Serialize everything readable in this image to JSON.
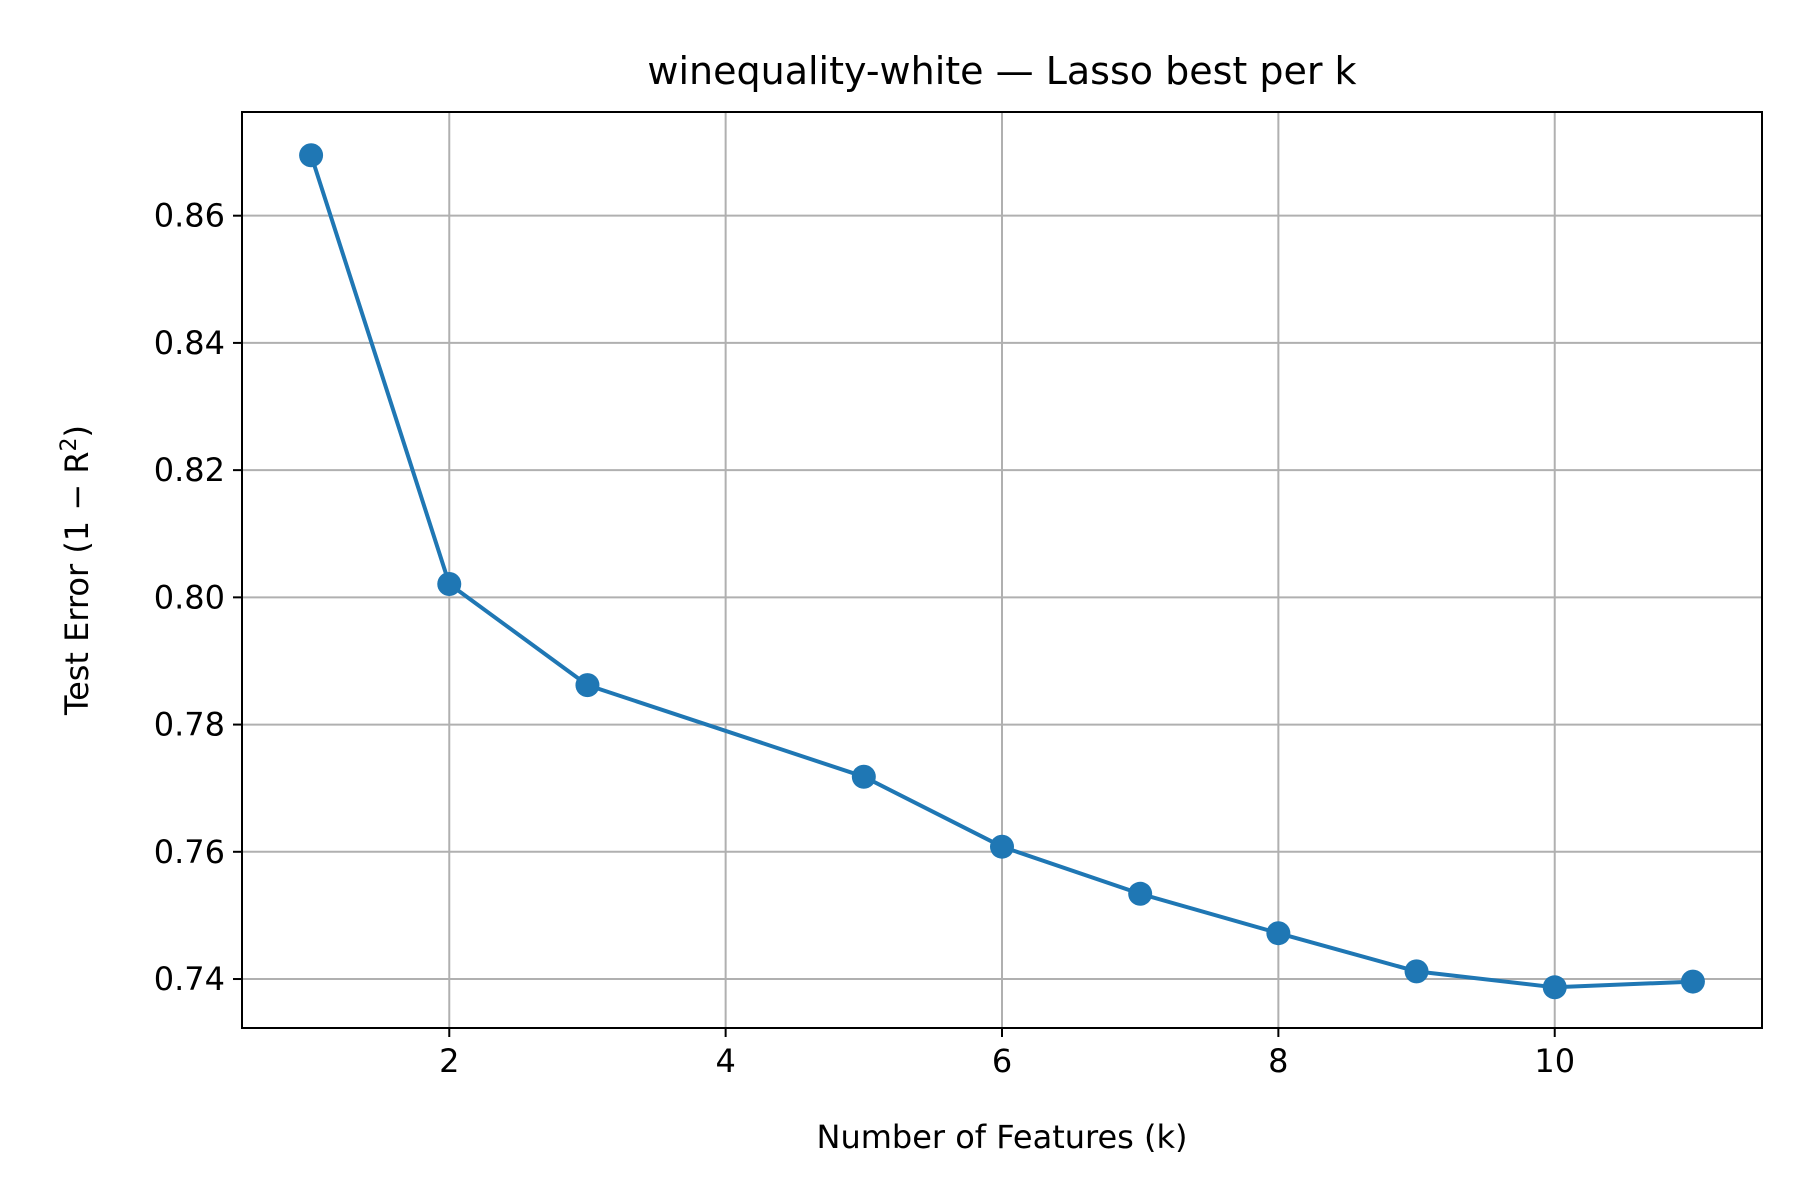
{
  "chart_data": {
    "type": "line",
    "title": "winequality-white — Lasso best per k",
    "xlabel": "Number of Features (k)",
    "ylabel_main": "Test Error (1 − R",
    "ylabel_sup": "2",
    "ylabel_close": ")",
    "xlim": [
      0.5,
      11.5
    ],
    "ylim": [
      0.7323,
      0.8763
    ],
    "xticks": [
      2,
      4,
      6,
      8,
      10
    ],
    "xtick_labels": [
      "2",
      "4",
      "6",
      "8",
      "10"
    ],
    "yticks": [
      0.74,
      0.76,
      0.78,
      0.8,
      0.82,
      0.84,
      0.86
    ],
    "ytick_labels": [
      "0.74",
      "0.76",
      "0.78",
      "0.80",
      "0.82",
      "0.84",
      "0.86"
    ],
    "grid": true,
    "series": [
      {
        "color": "#1f77b4",
        "marker": "circle",
        "x": [
          1,
          2,
          3,
          5,
          6,
          7,
          8,
          9,
          10,
          11
        ],
        "y": [
          0.8695,
          0.8021,
          0.7862,
          0.7718,
          0.7608,
          0.7534,
          0.7472,
          0.7412,
          0.7387,
          0.7396
        ]
      }
    ],
    "colors": {
      "grid": "#b0b0b0",
      "axes": "#000000",
      "background": "#ffffff"
    }
  }
}
